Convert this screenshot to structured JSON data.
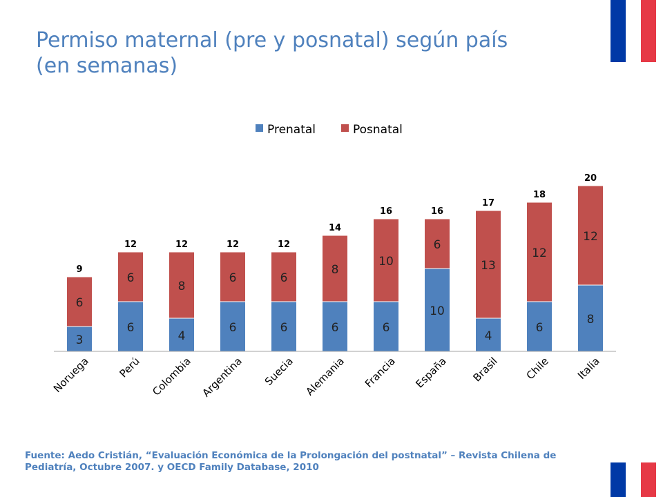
{
  "slide": {
    "title_line1": "Permiso maternal (pre y posnatal) según país",
    "title_line2": "(en semanas)",
    "source_line1": "Fuente: Aedo Cristián, “Evaluación Económica de la Prolongación del postnatal” – Revista Chilena de",
    "source_line2": "Pediatría, Octubre 2007. y OECD Family Database, 2010"
  },
  "flag_colors": {
    "blue": "#0039a6",
    "white": "#ffffff",
    "red": "#e63946"
  },
  "chart_data": {
    "type": "bar",
    "stacked": true,
    "title": "",
    "xlabel": "",
    "ylabel": "",
    "ylim": [
      0,
      20
    ],
    "grid": false,
    "legend_position": "top",
    "categories": [
      "Noruega",
      "Perú",
      "Colombia",
      "Argentina",
      "Suecia",
      "Alemania",
      "Francia",
      "España",
      "Brasil",
      "Chile",
      "Italia"
    ],
    "series": [
      {
        "name": "Prenatal",
        "color": "#4f81bd",
        "values": [
          3,
          6,
          4,
          6,
          6,
          6,
          6,
          10,
          4,
          6,
          8
        ]
      },
      {
        "name": "Posnatal",
        "color": "#c0504d",
        "values": [
          6,
          6,
          8,
          6,
          6,
          8,
          10,
          6,
          13,
          12,
          12
        ]
      }
    ],
    "totals": [
      9,
      12,
      12,
      12,
      12,
      14,
      16,
      16,
      17,
      18,
      20
    ]
  }
}
